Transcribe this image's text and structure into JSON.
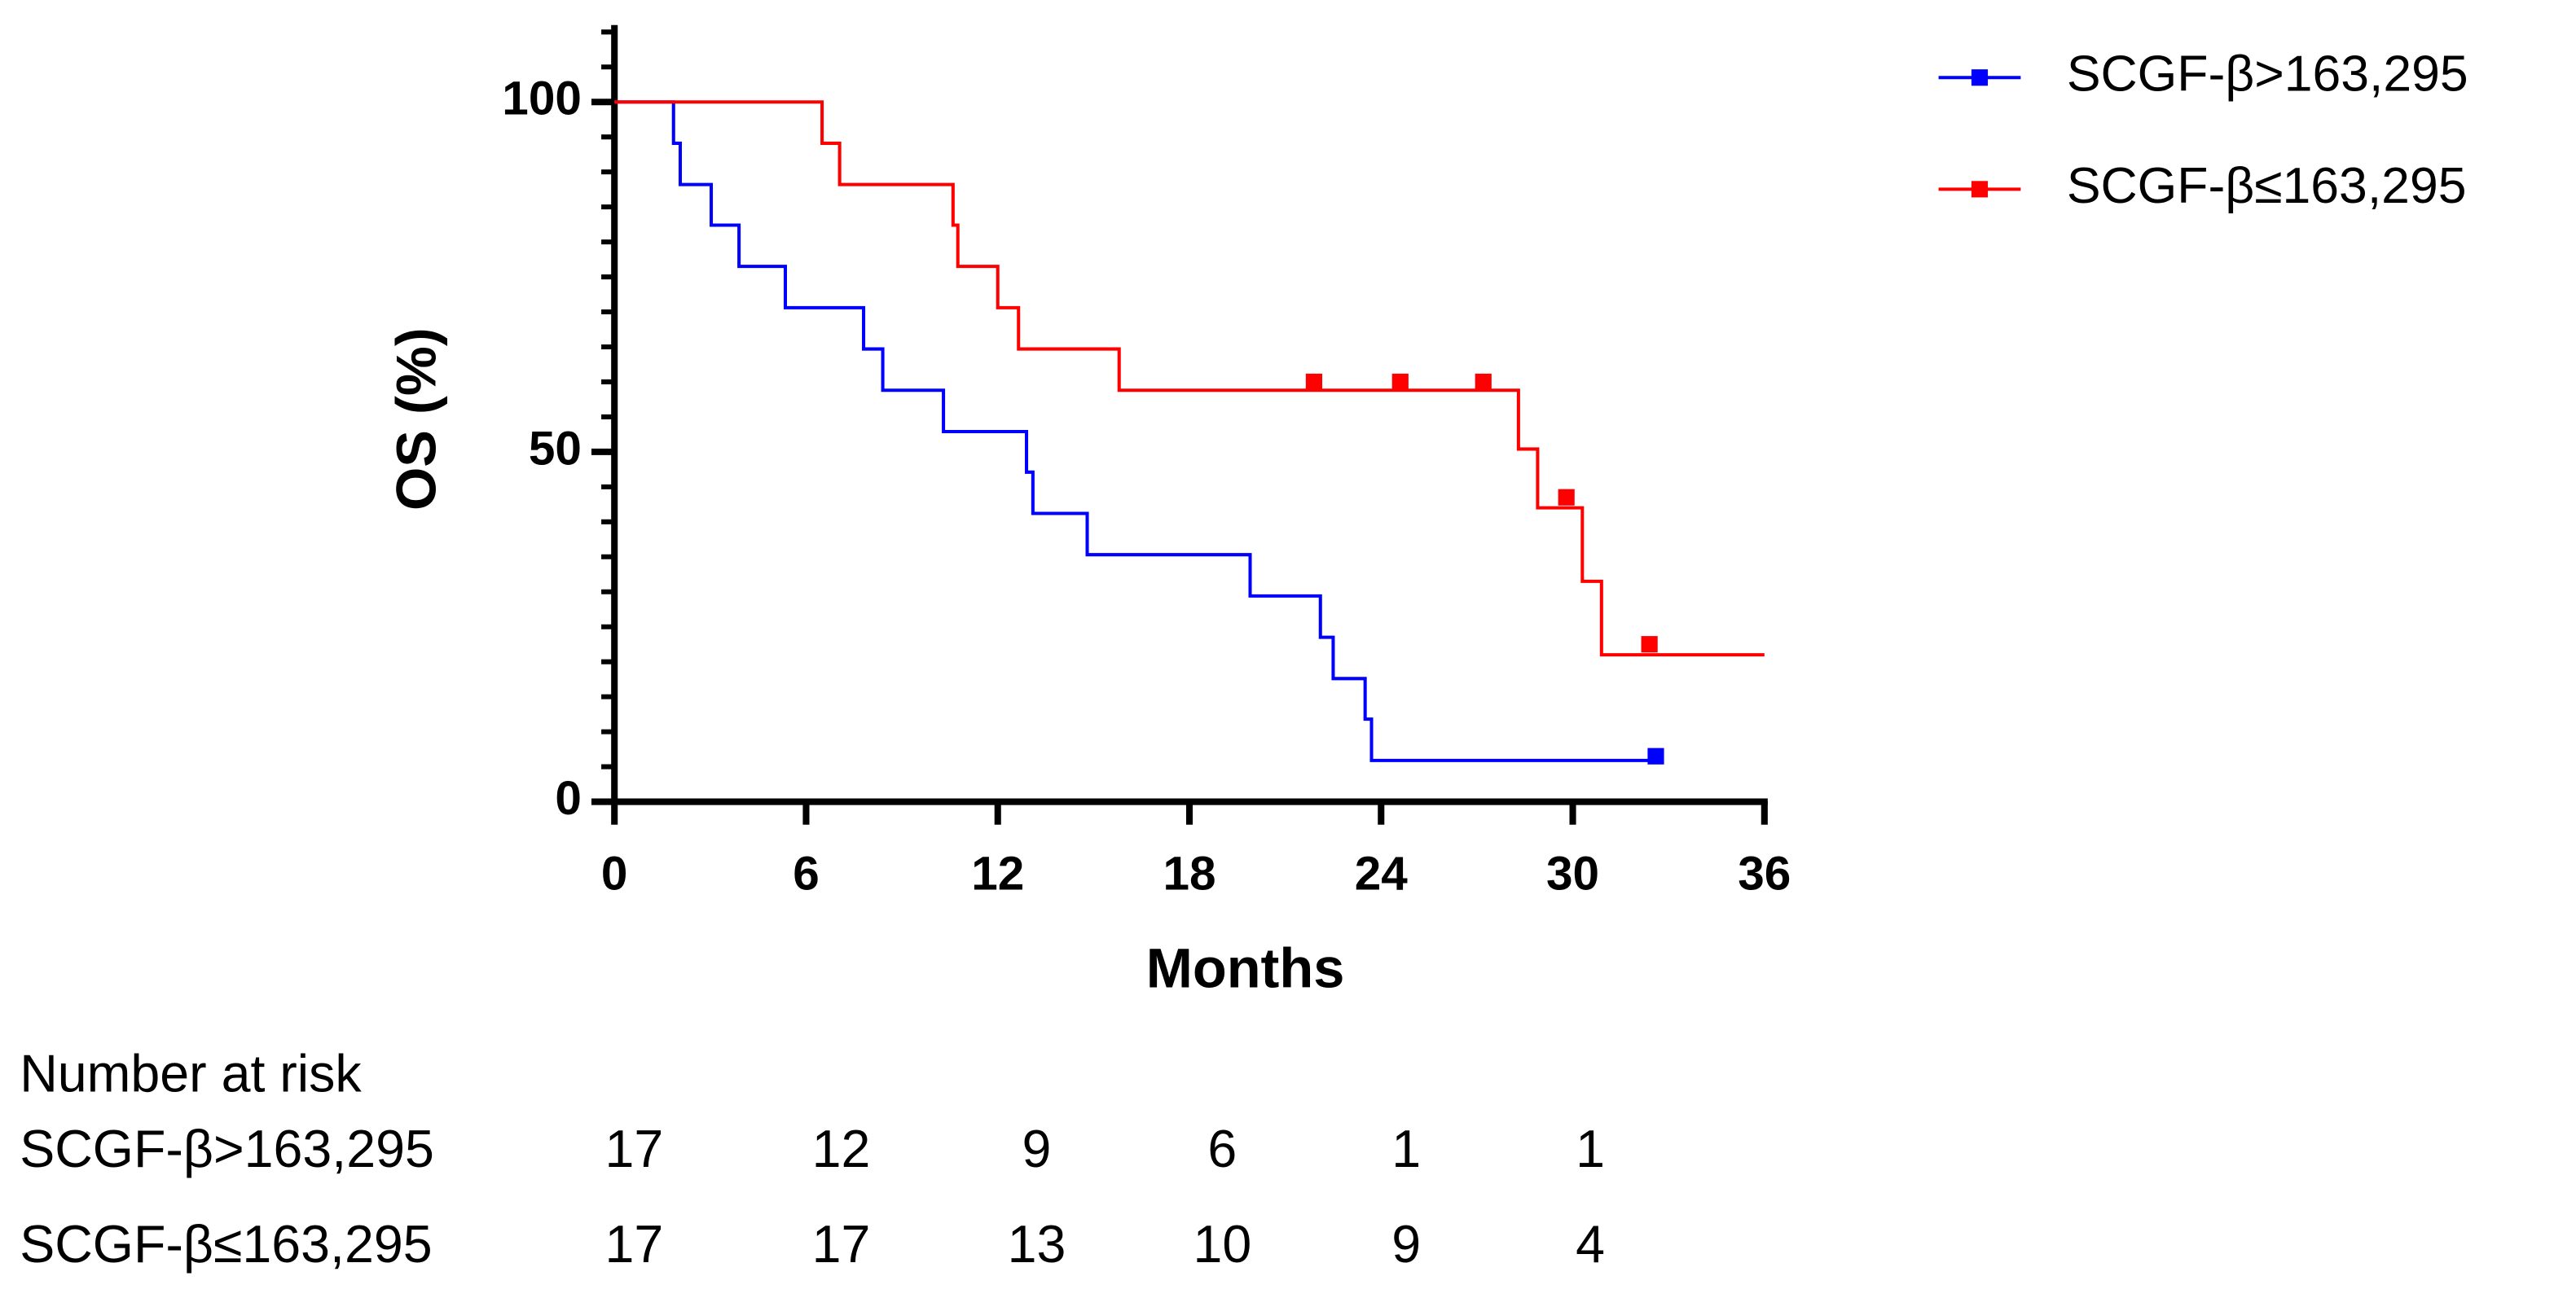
{
  "chart_data": {
    "type": "survival",
    "xlabel": "Months",
    "ylabel": "OS (%)",
    "xlim": [
      0,
      36
    ],
    "xticks": [
      0,
      6,
      12,
      18,
      24,
      30,
      36
    ],
    "ylim": [
      0,
      111
    ],
    "yticks": [
      0,
      50,
      100
    ],
    "yminorticks": [
      5,
      10,
      15,
      20,
      25,
      30,
      35,
      40,
      45,
      55,
      60,
      65,
      70,
      75,
      80,
      85,
      90,
      95,
      105,
      110
    ],
    "series": [
      {
        "name": "SCGF-β>163,295",
        "color": "#0000ff",
        "x": [
          0,
          1.85,
          2.06,
          3.03,
          3.9,
          5.35,
          7.8,
          8.4,
          10.3,
          12.9,
          13.1,
          14.8,
          19.9,
          22.1,
          22.5,
          23.5,
          23.7,
          32.6
        ],
        "values": [
          100,
          94.1,
          88.2,
          82.4,
          76.5,
          70.6,
          64.7,
          58.8,
          52.9,
          47.1,
          41.2,
          35.3,
          29.4,
          23.5,
          17.6,
          11.8,
          5.9,
          5.9
        ],
        "censor_x": [
          32.6
        ],
        "censor_values": [
          6.5
        ]
      },
      {
        "name": "SCGF-β≤163,295",
        "color": "#ff0000",
        "x": [
          0,
          6.5,
          7.05,
          10.6,
          10.75,
          12.0,
          12.65,
          15.8,
          28.3,
          28.9,
          30.3,
          30.9,
          36
        ],
        "values": [
          100,
          94.1,
          88.2,
          82.4,
          76.5,
          70.6,
          64.7,
          58.8,
          50.4,
          42.0,
          31.5,
          21.0,
          21.0
        ],
        "censor_x": [
          21.9,
          24.6,
          27.2,
          29.8,
          32.4
        ],
        "censor_values": [
          60,
          60,
          60,
          43.5,
          22.5
        ]
      }
    ],
    "risk_table": {
      "title": "Number at risk",
      "rows": [
        {
          "label": "SCGF-β>163,295",
          "values": [
            17,
            12,
            9,
            6,
            1,
            1
          ]
        },
        {
          "label": "SCGF-β≤163,295",
          "values": [
            17,
            17,
            13,
            10,
            9,
            4
          ]
        }
      ]
    }
  }
}
